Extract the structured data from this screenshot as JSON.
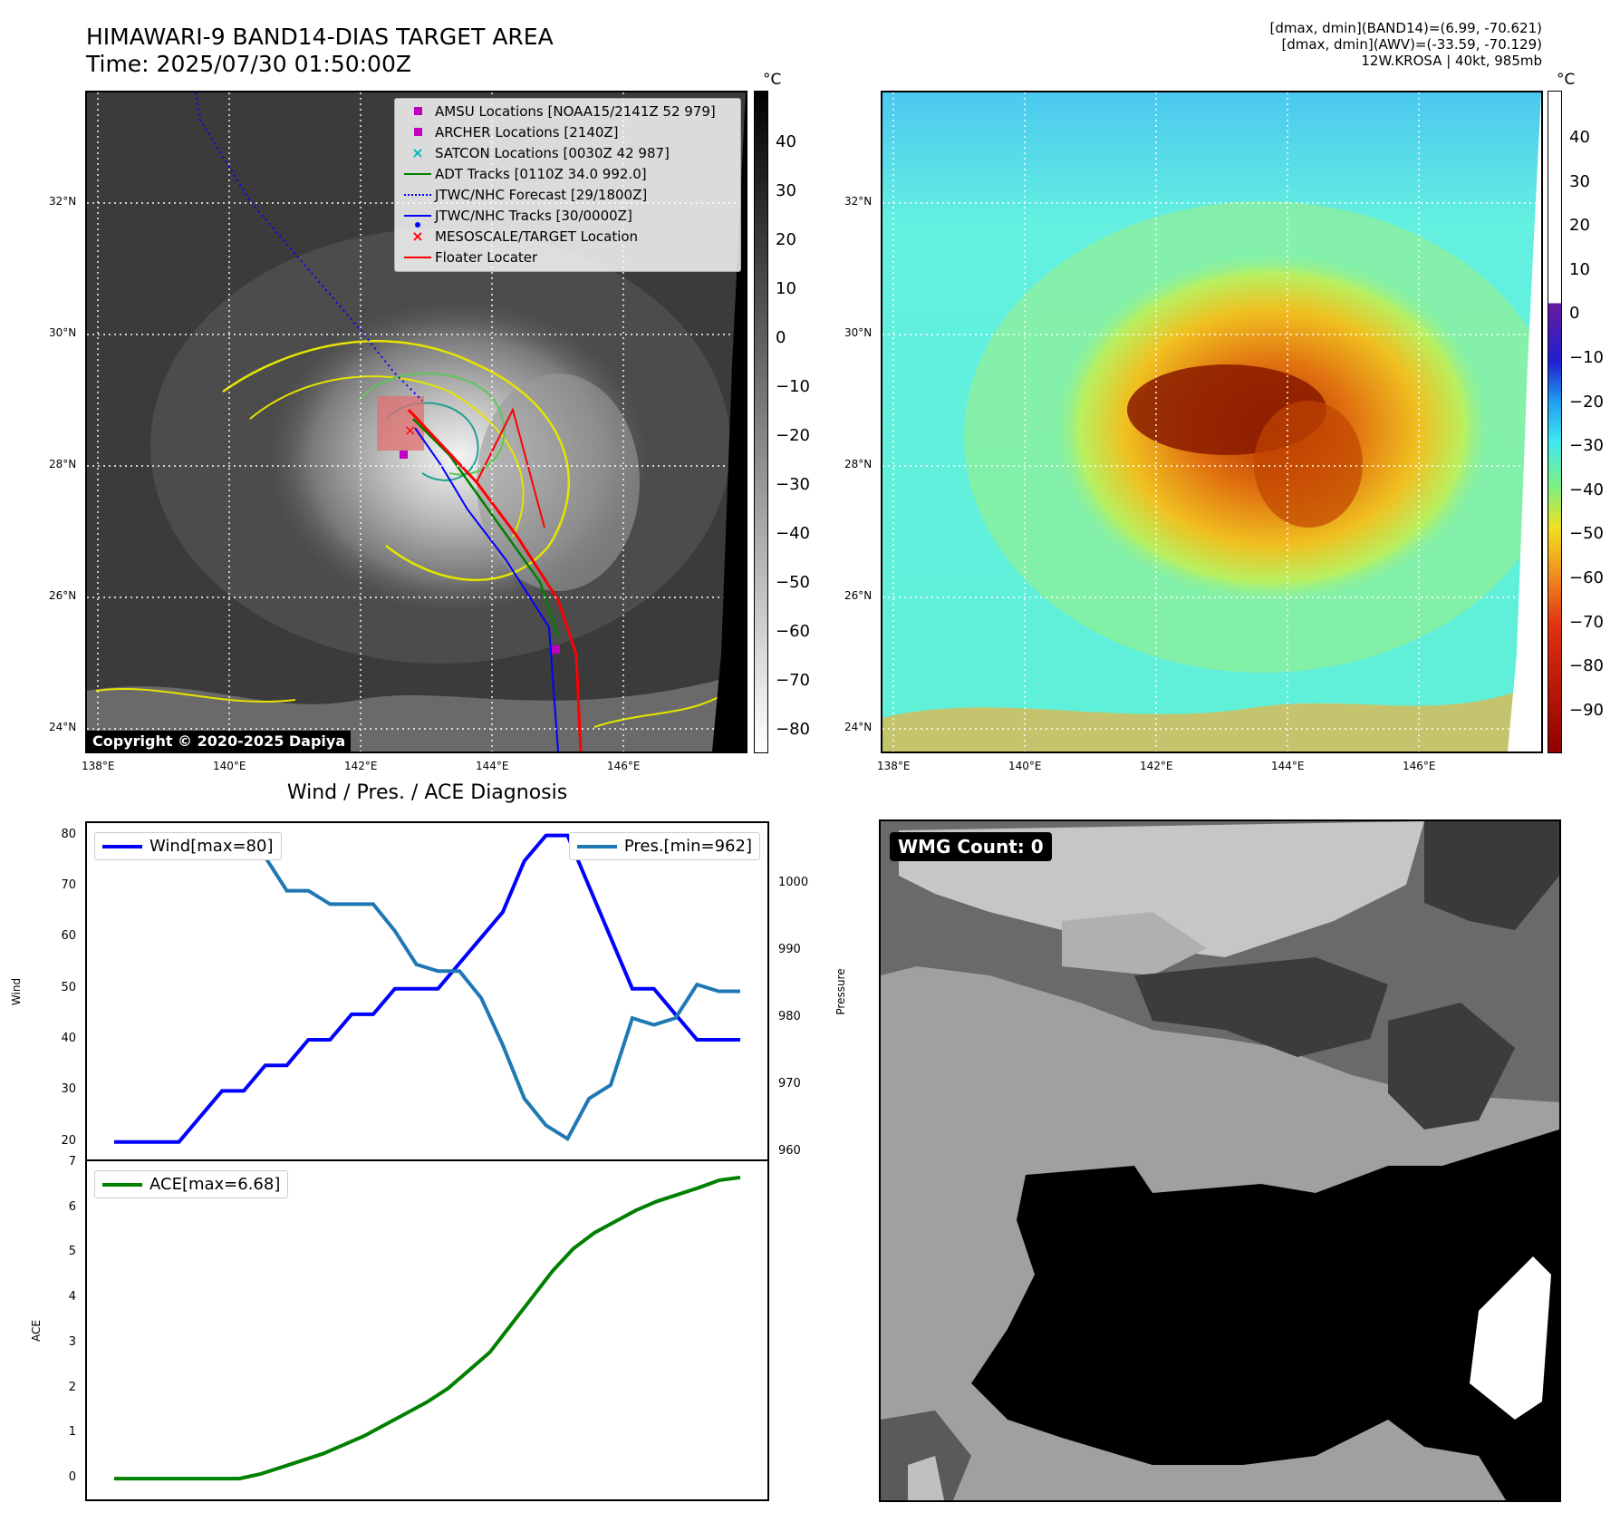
{
  "header": {
    "title": "HIMAWARI-9 BAND14-DIAS TARGET AREA",
    "time": "Time: 2025/07/30 01:50:00Z",
    "info_band14": "[dmax, dmin](BAND14)=(6.99, -70.621)",
    "info_awv": "[dmax, dmin](AWV)=(-33.59, -70.129)",
    "storm": "12W.KROSA | 40kt, 985mb"
  },
  "map_ticks": {
    "lat": [
      "32°N",
      "30°N",
      "28°N",
      "26°N",
      "24°N"
    ],
    "lon": [
      "138°E",
      "140°E",
      "142°E",
      "144°E",
      "146°E"
    ]
  },
  "ir_colorbar": {
    "unit": "°C",
    "ticks": [
      "40",
      "30",
      "20",
      "10",
      "0",
      "−10",
      "−20",
      "−30",
      "−40",
      "−50",
      "−60",
      "−70",
      "−80"
    ]
  },
  "awv_colorbar": {
    "unit": "°C",
    "ticks": [
      "40",
      "30",
      "20",
      "10",
      "0",
      "−10",
      "−20",
      "−30",
      "−40",
      "−50",
      "−60",
      "−70",
      "−80",
      "−90"
    ]
  },
  "legend": {
    "items": [
      {
        "label": "AMSU Locations [NOAA15/2141Z 52 979]",
        "marker": "square",
        "color": "#c000c0"
      },
      {
        "label": "ARCHER Locations [2140Z]",
        "marker": "square",
        "color": "#c000c0"
      },
      {
        "label": "SATCON Locations [0030Z 42 987]",
        "marker": "x",
        "color": "#00b8b8"
      },
      {
        "label": "ADT Tracks [0110Z 34.0 992.0]",
        "marker": "line",
        "color": "#008000"
      },
      {
        "label": "JTWC/NHC Forecast [29/1800Z]",
        "marker": "dotted",
        "color": "#0000ff"
      },
      {
        "label": "JTWC/NHC Tracks [30/0000Z]",
        "marker": "line-dot",
        "color": "#0000ff"
      },
      {
        "label": "MESOSCALE/TARGET Location",
        "marker": "x",
        "color": "#ff0000"
      },
      {
        "label": "Floater Locater",
        "marker": "line",
        "color": "#ff0000"
      }
    ]
  },
  "copyright": "Copyright © 2020-2025 Dapiya",
  "diagnosis_title": "Wind / Pres. / ACE Diagnosis",
  "wmg_label": "WMG Count: 0",
  "chart_data": [
    {
      "type": "line",
      "title": "Wind / Pres. / ACE Diagnosis",
      "ylabel": "Wind",
      "ylabel_right": "Pressure",
      "ylim": [
        18,
        81
      ],
      "ylim_right": [
        960,
        1008
      ],
      "yticks": [
        20,
        30,
        40,
        50,
        60,
        70,
        80
      ],
      "yticks_right": [
        960,
        970,
        980,
        990,
        1000
      ],
      "series": [
        {
          "name": "Wind[max=80]",
          "color": "#0000ff",
          "axis": "left",
          "values": [
            20,
            20,
            20,
            20,
            25,
            30,
            30,
            35,
            35,
            40,
            40,
            45,
            45,
            50,
            50,
            50,
            55,
            60,
            65,
            75,
            80,
            80,
            70,
            60,
            50,
            50,
            45,
            40,
            40,
            40
          ]
        },
        {
          "name": "Pres.[min=962]",
          "color": "#1f77b4",
          "axis": "right",
          "values": [
            1007,
            1007,
            1007,
            1007,
            1005,
            1005,
            1004,
            1004,
            999,
            999,
            997,
            997,
            997,
            993,
            988,
            987,
            987,
            983,
            976,
            968,
            964,
            962,
            968,
            970,
            980,
            979,
            980,
            985,
            984,
            984
          ]
        }
      ]
    },
    {
      "type": "line",
      "ylabel": "ACE",
      "ylim": [
        -0.3,
        7
      ],
      "yticks": [
        0,
        1,
        2,
        3,
        4,
        5,
        6,
        7
      ],
      "series": [
        {
          "name": "ACE[max=6.68]",
          "color": "#008000",
          "values": [
            0,
            0,
            0,
            0,
            0,
            0,
            0,
            0.1,
            0.25,
            0.4,
            0.55,
            0.75,
            0.95,
            1.2,
            1.45,
            1.7,
            2.0,
            2.4,
            2.8,
            3.4,
            4.0,
            4.6,
            5.1,
            5.45,
            5.7,
            5.95,
            6.15,
            6.3,
            6.45,
            6.62,
            6.68
          ]
        }
      ]
    }
  ]
}
